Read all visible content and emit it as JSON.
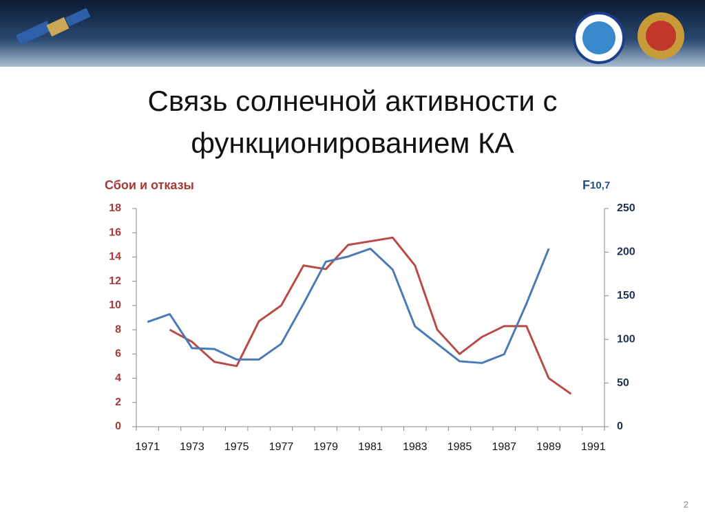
{
  "chart_data": {
    "type": "line",
    "title": [
      "Связь солнечной активности с",
      "функционированием КА"
    ],
    "y_label": "Сбои  и отказы",
    "y2_label": {
      "main": "F",
      "sub": "10,7"
    },
    "page_number": "2",
    "categories": [
      "1971",
      null,
      "1973",
      null,
      "1975",
      null,
      "1977",
      null,
      "1979",
      null,
      "1981",
      null,
      "1983",
      null,
      "1985",
      null,
      "1987",
      null,
      "1989",
      null,
      "1991"
    ],
    "ylim": [
      0,
      18
    ],
    "yticks": [
      0,
      2,
      4,
      6,
      8,
      10,
      12,
      14,
      16,
      18
    ],
    "y2lim": [
      0,
      250
    ],
    "y2ticks": [
      0,
      50,
      100,
      150,
      200,
      250
    ],
    "series": [
      {
        "name": "Сбои и отказы",
        "color": "#b84a48",
        "axis": "y",
        "values": [
          null,
          8.0,
          7.0,
          5.35,
          5.0,
          8.7,
          10.0,
          13.3,
          13.0,
          15.0,
          15.3,
          15.6,
          13.3,
          8.0,
          6.0,
          7.4,
          8.3,
          8.3,
          4.0,
          2.7,
          null
        ]
      },
      {
        "name": "F10,7",
        "color": "#4a7ab5",
        "axis": "y2",
        "values": [
          120,
          129,
          90,
          89,
          77,
          77,
          95,
          141,
          189,
          195,
          204,
          180,
          115,
          95,
          75,
          73,
          83,
          141,
          204,
          null,
          null
        ]
      }
    ]
  }
}
